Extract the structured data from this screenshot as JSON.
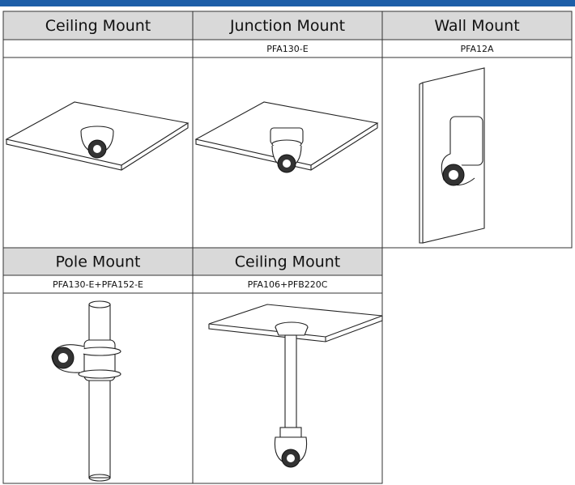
{
  "mounts": [
    {
      "name": "Ceiling Mount"
    },
    {
      "name": "Junction Mount",
      "accessory": "PFA130-E"
    },
    {
      "name": "Wall Mount",
      "accessory": "PFA12A"
    },
    {
      "name": "Pole Mount",
      "accessory": "PFA130-E+PFA152-E"
    },
    {
      "name": "Ceiling Mount",
      "accessory": "PFA106+PFB220C"
    }
  ]
}
